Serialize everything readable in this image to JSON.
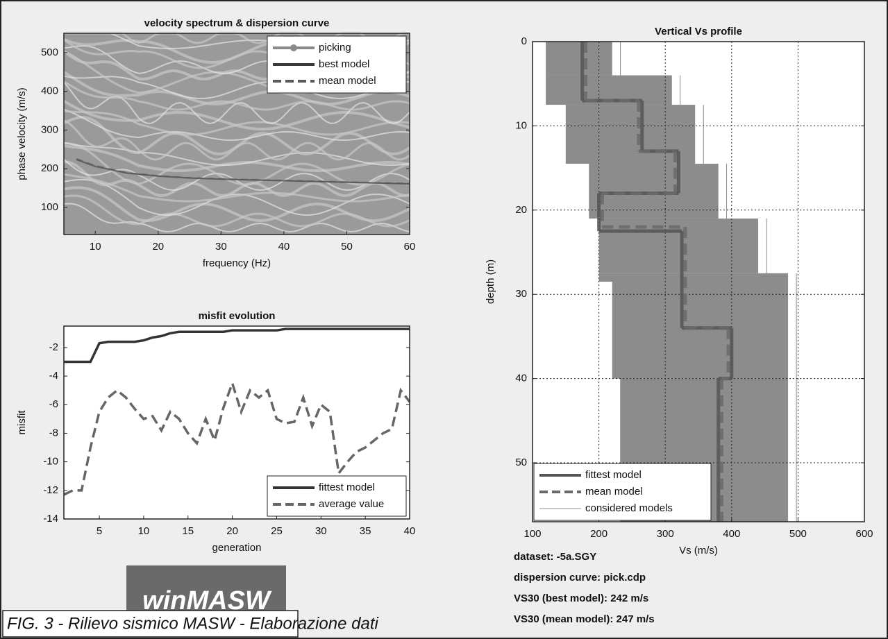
{
  "chart_data": [
    {
      "type": "spectrum",
      "title": "velocity spectrum & dispersion curve",
      "xlabel": "frequency (Hz)",
      "ylabel": "phase velocity (m/s)",
      "xlim": [
        5,
        60
      ],
      "xticks": [
        10,
        20,
        30,
        40,
        50,
        60
      ],
      "ylim": [
        30,
        550
      ],
      "yticks": [
        100,
        200,
        300,
        400,
        500
      ],
      "x": [
        7,
        10,
        15,
        20,
        25,
        30,
        35,
        40,
        45,
        50,
        55,
        60
      ],
      "series": [
        {
          "name": "picking",
          "color": "#8a8a8a",
          "values": [
            222,
            205,
            188,
            180,
            176,
            173,
            171,
            169,
            167,
            165,
            163,
            161
          ]
        },
        {
          "name": "best model",
          "color": "#3a3a3a",
          "values": [
            224,
            206,
            189,
            181,
            176,
            173,
            171,
            169,
            167,
            165,
            163,
            161
          ]
        },
        {
          "name": "mean model",
          "color": "#5a5a5a",
          "values": [
            226,
            208,
            190,
            182,
            177,
            174,
            172,
            170,
            168,
            166,
            164,
            162
          ]
        }
      ]
    },
    {
      "type": "line",
      "title": "misfit evolution",
      "xlabel": "generation",
      "ylabel": "misfit",
      "xlim": [
        1,
        40
      ],
      "xticks": [
        5,
        10,
        15,
        20,
        25,
        30,
        35,
        40
      ],
      "ylim": [
        -14,
        -0.5
      ],
      "yticks": [
        -14,
        -12,
        -10,
        -8,
        -6,
        -4,
        -2
      ],
      "x": [
        1,
        2,
        3,
        4,
        5,
        6,
        7,
        8,
        9,
        10,
        11,
        12,
        13,
        14,
        15,
        16,
        17,
        18,
        19,
        20,
        21,
        22,
        23,
        24,
        25,
        26,
        27,
        28,
        29,
        30,
        31,
        32,
        33,
        34,
        35,
        36,
        37,
        38,
        39,
        40
      ],
      "series": [
        {
          "name": "fittest model",
          "color": "#333333",
          "dash": false,
          "values": [
            -3,
            -3,
            -3,
            -3,
            -1.7,
            -1.6,
            -1.6,
            -1.6,
            -1.6,
            -1.5,
            -1.3,
            -1.2,
            -1,
            -0.9,
            -0.9,
            -0.9,
            -0.9,
            -0.9,
            -0.9,
            -0.8,
            -0.8,
            -0.8,
            -0.8,
            -0.8,
            -0.8,
            -0.7,
            -0.7,
            -0.7,
            -0.7,
            -0.7,
            -0.7,
            -0.7,
            -0.7,
            -0.7,
            -0.7,
            -0.7,
            -0.7,
            -0.7,
            -0.7,
            -0.7
          ]
        },
        {
          "name": "average value",
          "color": "#666666",
          "dash": true,
          "values": [
            -12.3,
            -12,
            -12,
            -9,
            -6.5,
            -5.5,
            -5,
            -5.5,
            -6.3,
            -7,
            -6.8,
            -7.8,
            -6.5,
            -7,
            -8,
            -8.7,
            -7,
            -8.5,
            -6.2,
            -4.5,
            -6.5,
            -5,
            -5.5,
            -5,
            -7,
            -7.3,
            -7.2,
            -5.5,
            -7.5,
            -6,
            -6.5,
            -10.8,
            -10,
            -9.3,
            -9,
            -8.5,
            -8,
            -7.7,
            -5,
            -5.8
          ]
        }
      ]
    },
    {
      "type": "profile",
      "title": "Vertical Vs profile",
      "xlabel": "Vs (m/s)",
      "ylabel": "depth (m)",
      "xlim": [
        100,
        600
      ],
      "xticks": [
        100,
        200,
        300,
        400,
        500,
        600
      ],
      "ylim": [
        0,
        57
      ],
      "yticks": [
        0,
        10,
        20,
        30,
        40,
        50
      ],
      "grid": true,
      "series": [
        {
          "name": "fittest model",
          "color": "#555555",
          "dash": false,
          "depths": [
            7,
            13,
            18,
            22.5,
            34,
            40,
            57
          ],
          "values": [
            175,
            265,
            320,
            200,
            325,
            400,
            380
          ]
        },
        {
          "name": "mean model",
          "color": "#6a6a6a",
          "dash": true,
          "depths": [
            7,
            13,
            18,
            22,
            34,
            40,
            57
          ],
          "values": [
            180,
            260,
            315,
            205,
            330,
            395,
            385
          ]
        },
        {
          "name": "considered models",
          "color": "#8c8c8c",
          "depths": [
            4,
            7.5,
            14.5,
            21,
            27.5,
            28.5,
            40,
            57
          ],
          "min": [
            120,
            120,
            150,
            185,
            200,
            200,
            220,
            232
          ],
          "max": [
            220,
            310,
            345,
            380,
            440,
            485,
            485,
            485
          ]
        }
      ]
    }
  ],
  "info": [
    "dataset: -5a.SGY",
    "dispersion curve: pick.cdp",
    "VS30 (best model): 242 m/s",
    "VS30 (mean model): 247 m/s"
  ],
  "logo": "winMASW",
  "caption": "FIG. 3 - Rilievo sismico MASW - Elaborazione dati"
}
